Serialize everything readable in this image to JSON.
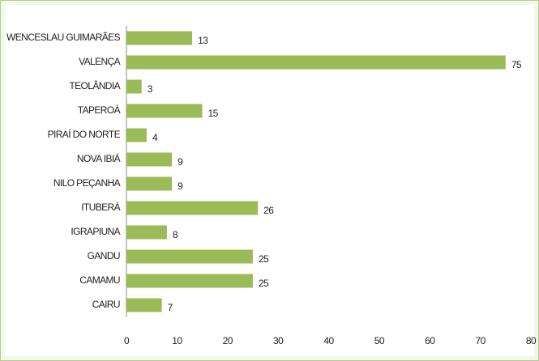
{
  "chart_data": {
    "type": "bar",
    "orientation": "horizontal",
    "categories": [
      "WENCESLAU GUIMARÃES",
      "VALENÇA",
      "TEOLÂNDIA",
      "TAPEROÁ",
      "PIRAÍ DO NORTE",
      "NOVA IBIÁ",
      "NILO PEÇANHA",
      "ITUBERÁ",
      "IGRAPIUNA",
      "GANDU",
      "CAMAMU",
      "CAIRU"
    ],
    "values": [
      13,
      75,
      3,
      15,
      4,
      9,
      9,
      26,
      8,
      25,
      25,
      7
    ],
    "color": "#9bbb59",
    "xlim": [
      0,
      80
    ],
    "xticks": [
      0,
      10,
      20,
      30,
      40,
      50,
      60,
      70,
      80
    ],
    "grid": false
  }
}
